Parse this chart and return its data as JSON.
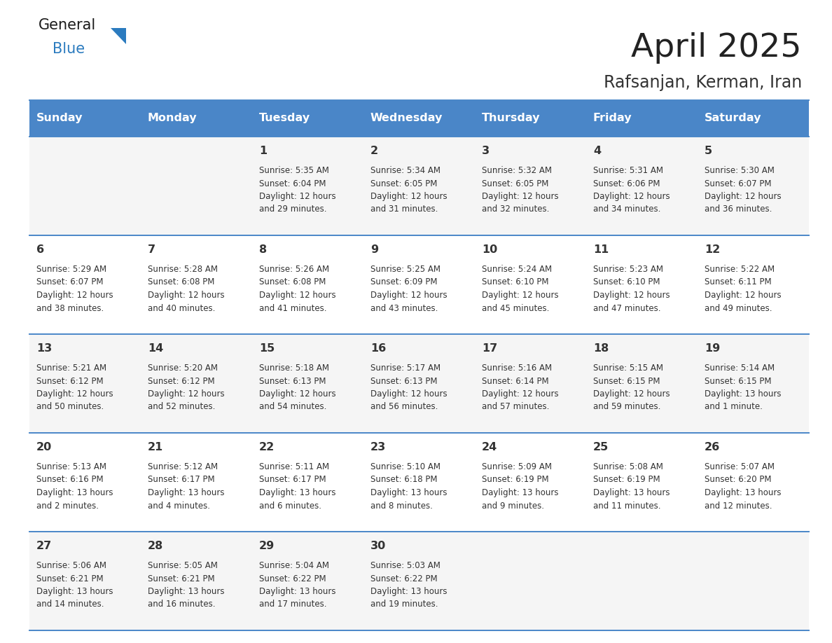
{
  "title": "April 2025",
  "subtitle": "Rafsanjan, Kerman, Iran",
  "header_color": "#4a86c8",
  "header_text_color": "#ffffff",
  "row_bg_even": "#f5f5f5",
  "row_bg_odd": "#ffffff",
  "border_color": "#4a86c8",
  "text_color": "#333333",
  "days_of_week": [
    "Sunday",
    "Monday",
    "Tuesday",
    "Wednesday",
    "Thursday",
    "Friday",
    "Saturday"
  ],
  "weeks": [
    [
      {
        "day": "",
        "info": ""
      },
      {
        "day": "",
        "info": ""
      },
      {
        "day": "1",
        "info": "Sunrise: 5:35 AM\nSunset: 6:04 PM\nDaylight: 12 hours\nand 29 minutes."
      },
      {
        "day": "2",
        "info": "Sunrise: 5:34 AM\nSunset: 6:05 PM\nDaylight: 12 hours\nand 31 minutes."
      },
      {
        "day": "3",
        "info": "Sunrise: 5:32 AM\nSunset: 6:05 PM\nDaylight: 12 hours\nand 32 minutes."
      },
      {
        "day": "4",
        "info": "Sunrise: 5:31 AM\nSunset: 6:06 PM\nDaylight: 12 hours\nand 34 minutes."
      },
      {
        "day": "5",
        "info": "Sunrise: 5:30 AM\nSunset: 6:07 PM\nDaylight: 12 hours\nand 36 minutes."
      }
    ],
    [
      {
        "day": "6",
        "info": "Sunrise: 5:29 AM\nSunset: 6:07 PM\nDaylight: 12 hours\nand 38 minutes."
      },
      {
        "day": "7",
        "info": "Sunrise: 5:28 AM\nSunset: 6:08 PM\nDaylight: 12 hours\nand 40 minutes."
      },
      {
        "day": "8",
        "info": "Sunrise: 5:26 AM\nSunset: 6:08 PM\nDaylight: 12 hours\nand 41 minutes."
      },
      {
        "day": "9",
        "info": "Sunrise: 5:25 AM\nSunset: 6:09 PM\nDaylight: 12 hours\nand 43 minutes."
      },
      {
        "day": "10",
        "info": "Sunrise: 5:24 AM\nSunset: 6:10 PM\nDaylight: 12 hours\nand 45 minutes."
      },
      {
        "day": "11",
        "info": "Sunrise: 5:23 AM\nSunset: 6:10 PM\nDaylight: 12 hours\nand 47 minutes."
      },
      {
        "day": "12",
        "info": "Sunrise: 5:22 AM\nSunset: 6:11 PM\nDaylight: 12 hours\nand 49 minutes."
      }
    ],
    [
      {
        "day": "13",
        "info": "Sunrise: 5:21 AM\nSunset: 6:12 PM\nDaylight: 12 hours\nand 50 minutes."
      },
      {
        "day": "14",
        "info": "Sunrise: 5:20 AM\nSunset: 6:12 PM\nDaylight: 12 hours\nand 52 minutes."
      },
      {
        "day": "15",
        "info": "Sunrise: 5:18 AM\nSunset: 6:13 PM\nDaylight: 12 hours\nand 54 minutes."
      },
      {
        "day": "16",
        "info": "Sunrise: 5:17 AM\nSunset: 6:13 PM\nDaylight: 12 hours\nand 56 minutes."
      },
      {
        "day": "17",
        "info": "Sunrise: 5:16 AM\nSunset: 6:14 PM\nDaylight: 12 hours\nand 57 minutes."
      },
      {
        "day": "18",
        "info": "Sunrise: 5:15 AM\nSunset: 6:15 PM\nDaylight: 12 hours\nand 59 minutes."
      },
      {
        "day": "19",
        "info": "Sunrise: 5:14 AM\nSunset: 6:15 PM\nDaylight: 13 hours\nand 1 minute."
      }
    ],
    [
      {
        "day": "20",
        "info": "Sunrise: 5:13 AM\nSunset: 6:16 PM\nDaylight: 13 hours\nand 2 minutes."
      },
      {
        "day": "21",
        "info": "Sunrise: 5:12 AM\nSunset: 6:17 PM\nDaylight: 13 hours\nand 4 minutes."
      },
      {
        "day": "22",
        "info": "Sunrise: 5:11 AM\nSunset: 6:17 PM\nDaylight: 13 hours\nand 6 minutes."
      },
      {
        "day": "23",
        "info": "Sunrise: 5:10 AM\nSunset: 6:18 PM\nDaylight: 13 hours\nand 8 minutes."
      },
      {
        "day": "24",
        "info": "Sunrise: 5:09 AM\nSunset: 6:19 PM\nDaylight: 13 hours\nand 9 minutes."
      },
      {
        "day": "25",
        "info": "Sunrise: 5:08 AM\nSunset: 6:19 PM\nDaylight: 13 hours\nand 11 minutes."
      },
      {
        "day": "26",
        "info": "Sunrise: 5:07 AM\nSunset: 6:20 PM\nDaylight: 13 hours\nand 12 minutes."
      }
    ],
    [
      {
        "day": "27",
        "info": "Sunrise: 5:06 AM\nSunset: 6:21 PM\nDaylight: 13 hours\nand 14 minutes."
      },
      {
        "day": "28",
        "info": "Sunrise: 5:05 AM\nSunset: 6:21 PM\nDaylight: 13 hours\nand 16 minutes."
      },
      {
        "day": "29",
        "info": "Sunrise: 5:04 AM\nSunset: 6:22 PM\nDaylight: 13 hours\nand 17 minutes."
      },
      {
        "day": "30",
        "info": "Sunrise: 5:03 AM\nSunset: 6:22 PM\nDaylight: 13 hours\nand 19 minutes."
      },
      {
        "day": "",
        "info": ""
      },
      {
        "day": "",
        "info": ""
      },
      {
        "day": "",
        "info": ""
      }
    ]
  ],
  "logo_color_general": "#1a1a1a",
  "logo_color_blue": "#2b7bbf",
  "logo_triangle_color": "#2b7bbf"
}
